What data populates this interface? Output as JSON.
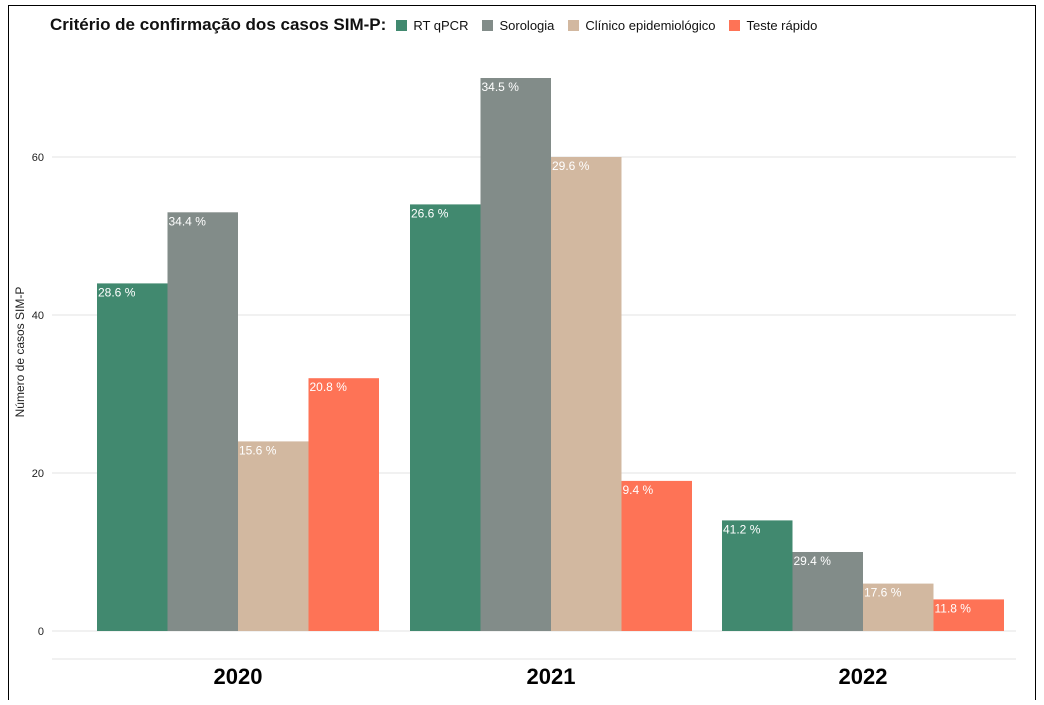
{
  "colors": {
    "rt_qpcr": "#41896f",
    "sorologia": "#828c89",
    "clinico": "#d2b8a0",
    "teste_rapido": "#fe7356",
    "grid": "#e3e3e3"
  },
  "chart_data": {
    "type": "bar",
    "title": "Critério de confirmação dos casos SIM-P:",
    "xlabel": "",
    "ylabel": "Número de casos SIM-P",
    "categories": [
      "2020",
      "2021",
      "2022"
    ],
    "ylim": [
      0,
      70
    ],
    "yticks": [
      0,
      20,
      40,
      60
    ],
    "grid": true,
    "legend_position": "top",
    "series": [
      {
        "name": "RT qPCR",
        "color": "#41896f",
        "values": [
          44,
          54,
          14
        ],
        "labels": [
          "28.6 %",
          "26.6 %",
          "41.2 %"
        ]
      },
      {
        "name": "Sorologia",
        "color": "#828c89",
        "values": [
          53,
          70,
          10
        ],
        "labels": [
          "34.4 %",
          "34.5 %",
          "29.4 %"
        ]
      },
      {
        "name": "Clínico epidemiológico",
        "color": "#d2b8a0",
        "values": [
          24,
          60,
          6
        ],
        "labels": [
          "15.6 %",
          "29.6 %",
          "17.6 %"
        ]
      },
      {
        "name": "Teste rápido",
        "color": "#fe7356",
        "values": [
          32,
          19,
          4
        ],
        "labels": [
          "20.8 %",
          "9.4 %",
          "11.8 %"
        ]
      }
    ]
  }
}
